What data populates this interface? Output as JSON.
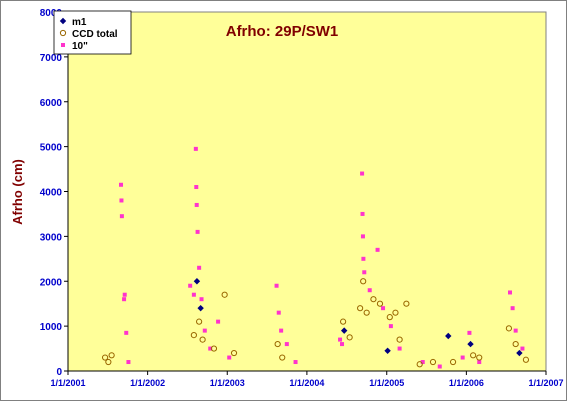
{
  "chart_data": {
    "type": "scatter",
    "title": "Afrho: 29P/SW1",
    "ylabel": "Afrho (cm)",
    "xlabel": "",
    "xlim": [
      "2001-01-01",
      "2007-01-01"
    ],
    "ylim": [
      0,
      8000
    ],
    "x_ticks": [
      "1/1/2001",
      "1/1/2002",
      "1/1/2003",
      "1/1/2004",
      "1/1/2005",
      "1/1/2006",
      "1/1/2007"
    ],
    "y_ticks": [
      "0",
      "1000",
      "2000",
      "3000",
      "4000",
      "5000",
      "6000",
      "7000",
      "8000"
    ],
    "grid": false,
    "legend_position": "top-left",
    "colors": {
      "plot_background": "#ffff99",
      "title": "#800000",
      "axis_title": "#800000",
      "tick_labels": "#0000cc",
      "m1": "#000080",
      "ccd_total": "#996600",
      "ten_arcsec": "#ff33cc"
    },
    "series": [
      {
        "name": "m1",
        "marker": "diamond",
        "points": [
          [
            "2002-08-15",
            2000
          ],
          [
            "2002-09-01",
            1400
          ],
          [
            "2004-06-20",
            900
          ],
          [
            "2005-01-05",
            450
          ],
          [
            "2005-10-10",
            780
          ],
          [
            "2006-01-20",
            600
          ],
          [
            "2006-09-01",
            400
          ]
        ]
      },
      {
        "name": "CCD total",
        "marker": "circle-open",
        "points": [
          [
            "2001-06-20",
            300
          ],
          [
            "2001-07-05",
            200
          ],
          [
            "2001-07-20",
            350
          ],
          [
            "2002-08-01",
            800
          ],
          [
            "2002-08-25",
            1100
          ],
          [
            "2002-09-10",
            700
          ],
          [
            "2002-11-01",
            500
          ],
          [
            "2002-12-20",
            1700
          ],
          [
            "2003-02-01",
            400
          ],
          [
            "2003-08-20",
            600
          ],
          [
            "2003-09-10",
            300
          ],
          [
            "2004-06-15",
            1100
          ],
          [
            "2004-07-15",
            750
          ],
          [
            "2004-09-01",
            1400
          ],
          [
            "2004-09-15",
            2000
          ],
          [
            "2004-10-01",
            1300
          ],
          [
            "2004-11-01",
            1600
          ],
          [
            "2004-12-01",
            1500
          ],
          [
            "2005-01-15",
            1200
          ],
          [
            "2005-02-10",
            1300
          ],
          [
            "2005-03-01",
            700
          ],
          [
            "2005-04-01",
            1500
          ],
          [
            "2005-06-01",
            150
          ],
          [
            "2005-08-01",
            200
          ],
          [
            "2005-11-01",
            200
          ],
          [
            "2006-02-01",
            350
          ],
          [
            "2006-03-01",
            300
          ],
          [
            "2006-07-15",
            950
          ],
          [
            "2006-08-15",
            600
          ],
          [
            "2006-10-01",
            250
          ]
        ]
      },
      {
        "name": "10\"",
        "marker": "square",
        "points": [
          [
            "2001-09-01",
            4150
          ],
          [
            "2001-09-03",
            3800
          ],
          [
            "2001-09-05",
            3450
          ],
          [
            "2001-09-15",
            1600
          ],
          [
            "2001-09-18",
            1700
          ],
          [
            "2001-09-25",
            850
          ],
          [
            "2001-10-05",
            200
          ],
          [
            "2002-07-15",
            1900
          ],
          [
            "2002-08-01",
            1700
          ],
          [
            "2002-08-10",
            4950
          ],
          [
            "2002-08-12",
            4100
          ],
          [
            "2002-08-14",
            3700
          ],
          [
            "2002-08-18",
            3100
          ],
          [
            "2002-08-25",
            2300
          ],
          [
            "2002-09-05",
            1600
          ],
          [
            "2002-09-20",
            900
          ],
          [
            "2002-10-15",
            500
          ],
          [
            "2002-11-20",
            1100
          ],
          [
            "2003-01-10",
            300
          ],
          [
            "2003-08-15",
            1900
          ],
          [
            "2003-08-25",
            1300
          ],
          [
            "2003-09-05",
            900
          ],
          [
            "2003-10-01",
            600
          ],
          [
            "2003-11-10",
            200
          ],
          [
            "2004-06-01",
            700
          ],
          [
            "2004-06-10",
            600
          ],
          [
            "2004-09-10",
            4400
          ],
          [
            "2004-09-12",
            3500
          ],
          [
            "2004-09-14",
            3000
          ],
          [
            "2004-09-16",
            2500
          ],
          [
            "2004-09-20",
            2200
          ],
          [
            "2004-10-15",
            1800
          ],
          [
            "2004-11-20",
            2700
          ],
          [
            "2004-12-15",
            1400
          ],
          [
            "2005-01-20",
            1000
          ],
          [
            "2005-03-01",
            500
          ],
          [
            "2005-06-15",
            200
          ],
          [
            "2005-09-01",
            100
          ],
          [
            "2005-12-15",
            300
          ],
          [
            "2006-01-15",
            850
          ],
          [
            "2006-03-01",
            200
          ],
          [
            "2006-07-20",
            1750
          ],
          [
            "2006-08-01",
            1400
          ],
          [
            "2006-08-15",
            900
          ],
          [
            "2006-09-15",
            500
          ]
        ]
      }
    ]
  }
}
